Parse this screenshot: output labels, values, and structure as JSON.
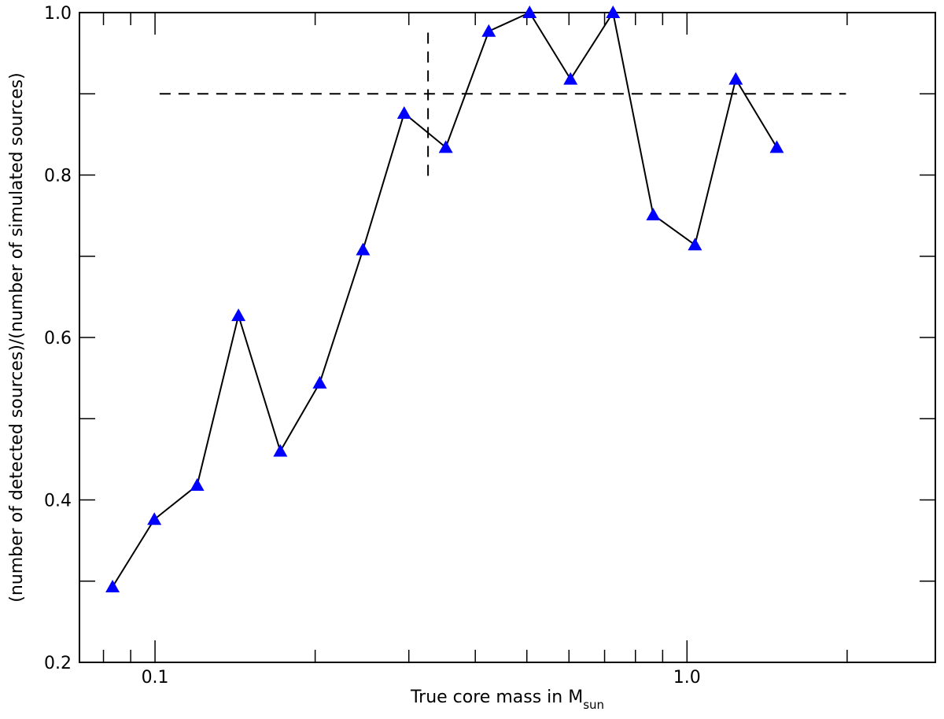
{
  "chart_data": {
    "type": "line",
    "xlabel": "True core mass in M",
    "xlabel_sub": "sun",
    "ylabel": "(number of detected sources)/(number of simulated sources)",
    "xscale": "log",
    "x": [
      0.0832,
      0.0997,
      0.12,
      0.1435,
      0.172,
      0.204,
      0.246,
      0.294,
      0.352,
      0.424,
      0.506,
      0.604,
      0.726,
      0.864,
      1.035,
      1.235,
      1.475
    ],
    "series": [
      {
        "color": "#0000ff",
        "line_color": "#000000",
        "marker": "triangle",
        "values": [
          0.293,
          0.376,
          0.418,
          0.627,
          0.46,
          0.544,
          0.708,
          0.876,
          0.834,
          0.977,
          1.0,
          0.918,
          1.0,
          0.751,
          0.714,
          0.918,
          0.834
        ]
      }
    ],
    "xlim": [
      0.0721,
      2.93
    ],
    "ylim": [
      0.2,
      1.0
    ],
    "xticks": [
      0.1,
      {
        "value": 1,
        "label": "1.0"
      }
    ],
    "xminorticks": [
      0.08,
      0.09,
      0.2,
      0.3,
      0.4,
      0.5,
      0.6,
      0.7,
      0.8,
      0.9,
      2
    ],
    "yticks": [
      0.2,
      0.4,
      0.6,
      0.8,
      {
        "value": 1,
        "label": "1.0"
      }
    ],
    "yminorticks": [
      0.3,
      0.5,
      0.7,
      0.9
    ],
    "hline": {
      "y": 0.9,
      "x": [
        0.102,
        1.99
      ]
    },
    "vline": {
      "x": 0.326,
      "y": [
        0.799,
        0.983
      ]
    }
  }
}
